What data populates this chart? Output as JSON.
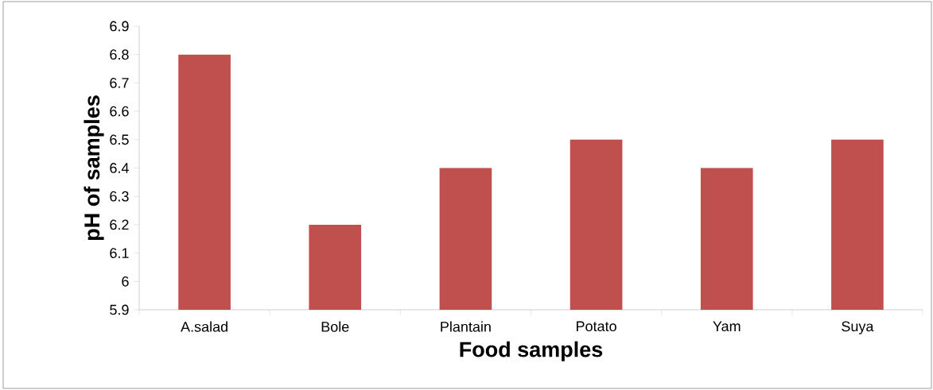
{
  "chart_data": {
    "type": "bar",
    "xlabel": "Food samples",
    "ylabel": "pH of samples",
    "categories": [
      "A.salad",
      "Bole",
      "Plantain",
      "Potato",
      "Yam",
      "Suya"
    ],
    "values": [
      6.8,
      6.2,
      6.4,
      6.5,
      6.4,
      6.5
    ],
    "color": "#c0504d",
    "ylim": [
      5.9,
      6.9
    ],
    "yticks": [
      5.9,
      6,
      6.1,
      6.2,
      6.3,
      6.4,
      6.5,
      6.6,
      6.7,
      6.8,
      6.9
    ],
    "grid": false
  }
}
